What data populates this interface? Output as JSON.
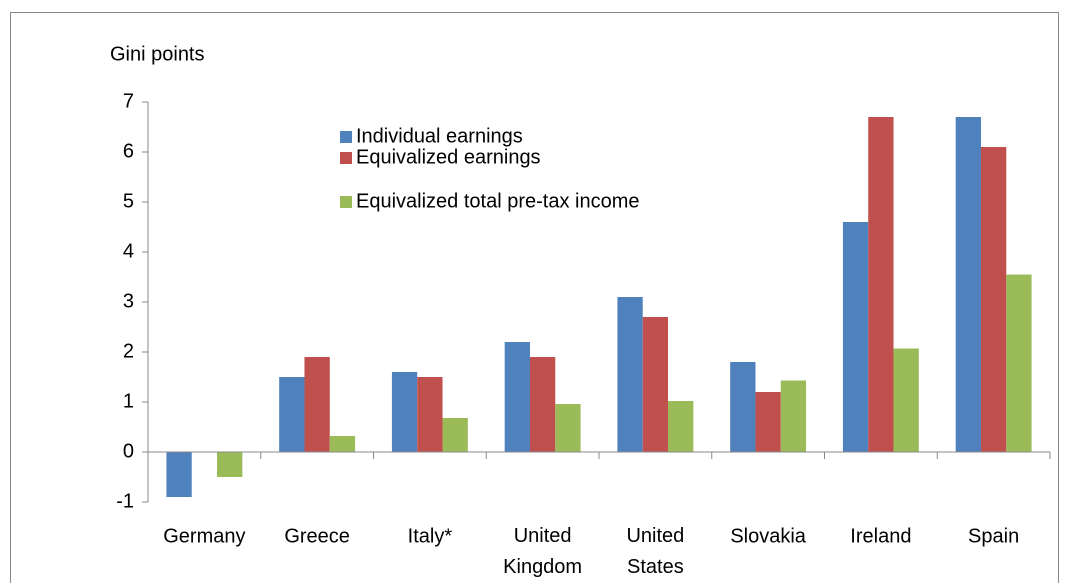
{
  "chart_data": {
    "type": "bar",
    "y_label": "Gini points",
    "categories": [
      "Germany",
      "Greece",
      "Italy*",
      "United Kingdom",
      "United States",
      "Slovakia",
      "Ireland",
      "Spain"
    ],
    "series": [
      {
        "name": "Individual earnings",
        "color": "#4f81bd",
        "values": [
          -0.9,
          1.5,
          1.6,
          2.2,
          3.1,
          1.8,
          4.6,
          6.7
        ]
      },
      {
        "name": "Equivalized earnings",
        "color": "#c0504d",
        "values": [
          0,
          1.9,
          1.5,
          1.9,
          2.7,
          1.2,
          6.7,
          6.1
        ]
      },
      {
        "name": "Equivalized total pre-tax income",
        "color": "#9bbb59",
        "values": [
          -0.5,
          0.32,
          0.68,
          0.96,
          1.02,
          1.43,
          2.07,
          3.55
        ]
      }
    ],
    "ylim": [
      -1,
      7
    ],
    "yticks": [
      -1,
      0,
      1,
      2,
      3,
      4,
      5,
      6,
      7
    ],
    "legend": "top-left"
  }
}
